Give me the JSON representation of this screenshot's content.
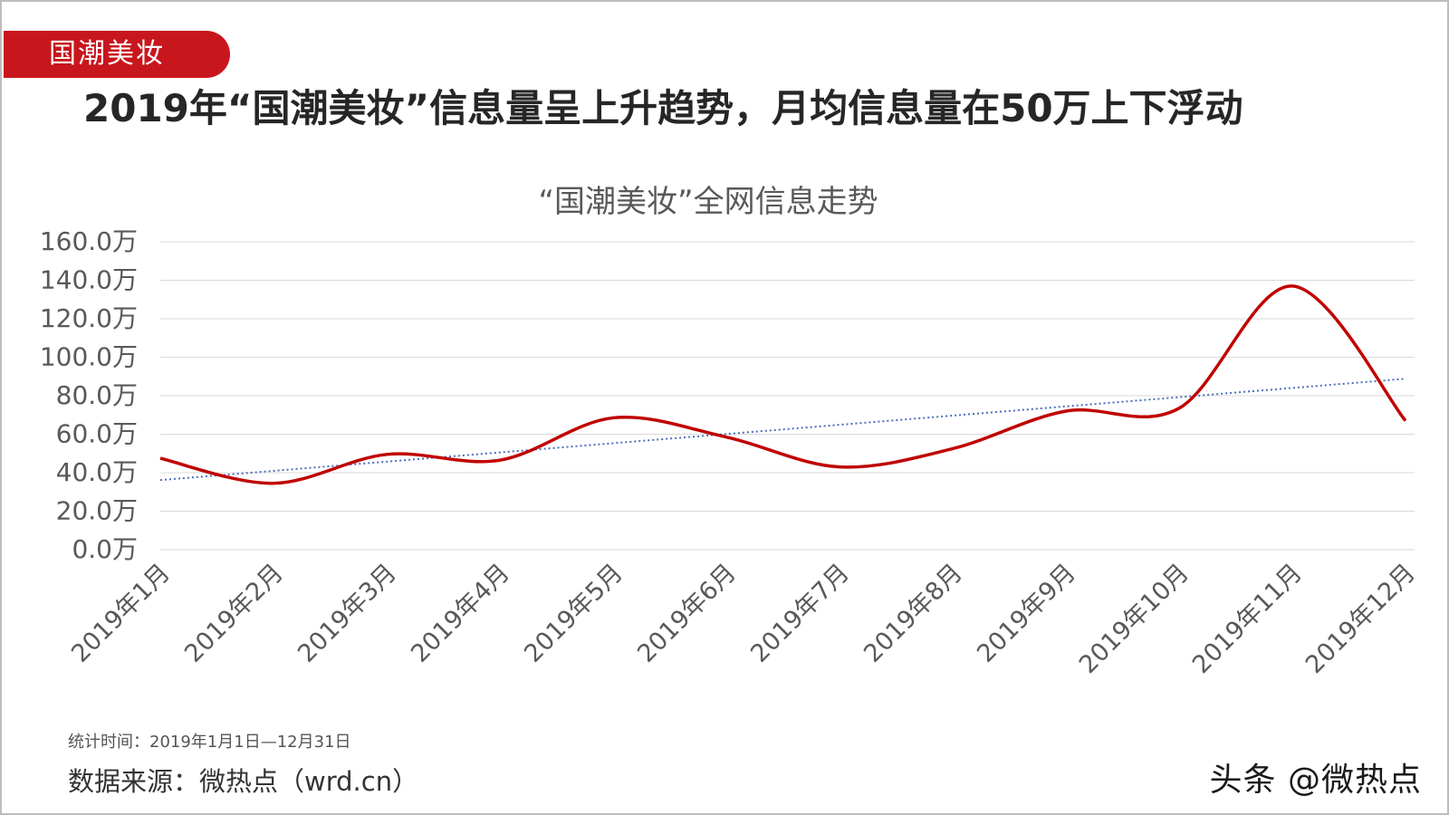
{
  "header": {
    "tag_label": "国潮美妆",
    "headline": "2019年“国潮美妆”信息量呈上升趋势，月均信息量在50万上下浮动"
  },
  "chart_data": {
    "type": "line",
    "title": "“国潮美妆”全网信息走势",
    "categories": [
      "2019年1月",
      "2019年2月",
      "2019年3月",
      "2019年4月",
      "2019年5月",
      "2019年6月",
      "2019年7月",
      "2019年8月",
      "2019年9月",
      "2019年10月",
      "2019年11月",
      "2019年12月"
    ],
    "series": [
      {
        "values": [
          47.5,
          34.5,
          49.5,
          46.5,
          68.5,
          58.5,
          43.0,
          52.5,
          72.0,
          73.5,
          137.0,
          67.0
        ],
        "color": "#c00000",
        "style": "smooth"
      }
    ],
    "trendline": {
      "type": "linear",
      "color": "#4a6fbd",
      "style": "dotted"
    },
    "y_unit": "万",
    "ylim": [
      0,
      160
    ],
    "yticks": [
      "0.0万",
      "20.0万",
      "40.0万",
      "60.0万",
      "80.0万",
      "100.0万",
      "120.0万",
      "140.0万",
      "160.0万"
    ],
    "grid": true,
    "legend": "none"
  },
  "footer": {
    "stat_time": "统计时间：2019年1月1日—12月31日",
    "source": "数据来源：微热点（wrd.cn）",
    "watermark": "头条 @微热点"
  }
}
